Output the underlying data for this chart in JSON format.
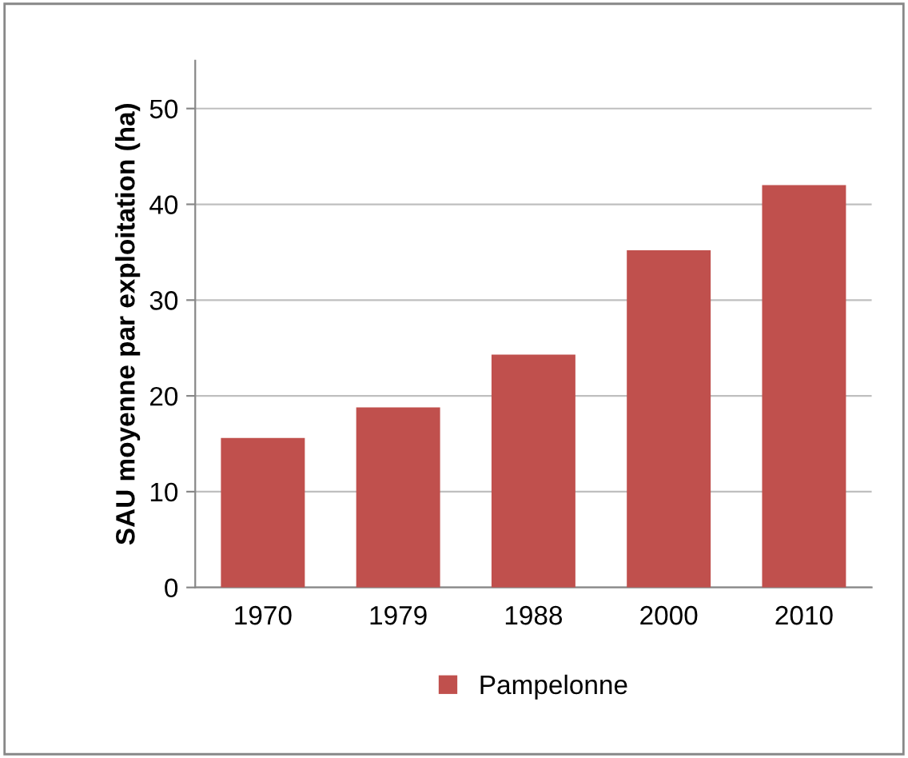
{
  "chart_data": {
    "type": "bar",
    "ylabel": "SAU moyenne par exploitation (ha)",
    "categories": [
      "1970",
      "1979",
      "1988",
      "2000",
      "2010"
    ],
    "series": [
      {
        "name": "Pampelonne",
        "color": "#c0504d",
        "values": [
          15.6,
          18.8,
          24.3,
          35.2,
          42.0
        ]
      }
    ],
    "ylim": [
      0,
      55
    ],
    "yticks": [
      0,
      10,
      20,
      30,
      40,
      50
    ],
    "grid": "y",
    "legend": "bottom"
  }
}
